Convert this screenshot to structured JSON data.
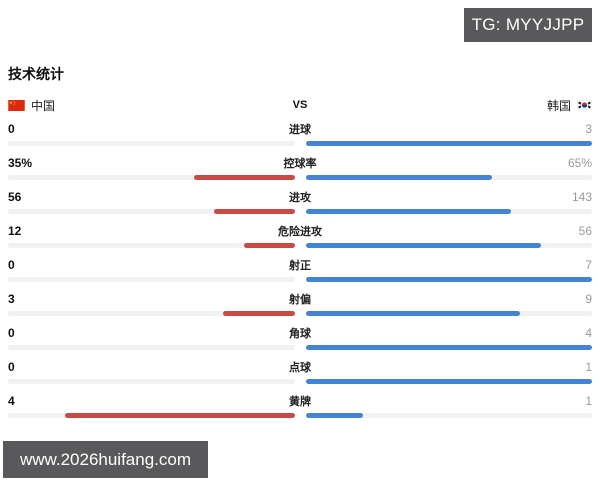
{
  "badges": {
    "telegram": "TG: MYYJJPP",
    "website": "www.2026huifang.com"
  },
  "page_title": "技术统计",
  "header": {
    "home_team": "中国",
    "vs_label": "VS",
    "away_team": "韩国"
  },
  "colors": {
    "home_bar": "#c84b46",
    "away_bar": "#4484d4",
    "track": "#f1f2f3",
    "badge_bg": "#59595b",
    "away_value_text": "#97999c"
  },
  "chart_data": {
    "type": "bar",
    "variant": "head-to-head horizontal duel bars growing outward from center",
    "title": "技术统计",
    "home_team": "中国",
    "away_team": "韩国",
    "normalization": "bar length fraction = value / (home + away) per row",
    "rows": [
      {
        "label": "进球",
        "home": 0,
        "away": 3,
        "home_display": "0",
        "away_display": "3"
      },
      {
        "label": "控球率",
        "home": 35,
        "away": 65,
        "home_display": "35%",
        "away_display": "65%"
      },
      {
        "label": "进攻",
        "home": 56,
        "away": 143,
        "home_display": "56",
        "away_display": "143"
      },
      {
        "label": "危险进攻",
        "home": 12,
        "away": 56,
        "home_display": "12",
        "away_display": "56"
      },
      {
        "label": "射正",
        "home": 0,
        "away": 7,
        "home_display": "0",
        "away_display": "7"
      },
      {
        "label": "射偏",
        "home": 3,
        "away": 9,
        "home_display": "3",
        "away_display": "9"
      },
      {
        "label": "角球",
        "home": 0,
        "away": 4,
        "home_display": "0",
        "away_display": "4"
      },
      {
        "label": "点球",
        "home": 0,
        "away": 1,
        "home_display": "0",
        "away_display": "1"
      },
      {
        "label": "黄牌",
        "home": 4,
        "away": 1,
        "home_display": "4",
        "away_display": "1"
      }
    ]
  }
}
